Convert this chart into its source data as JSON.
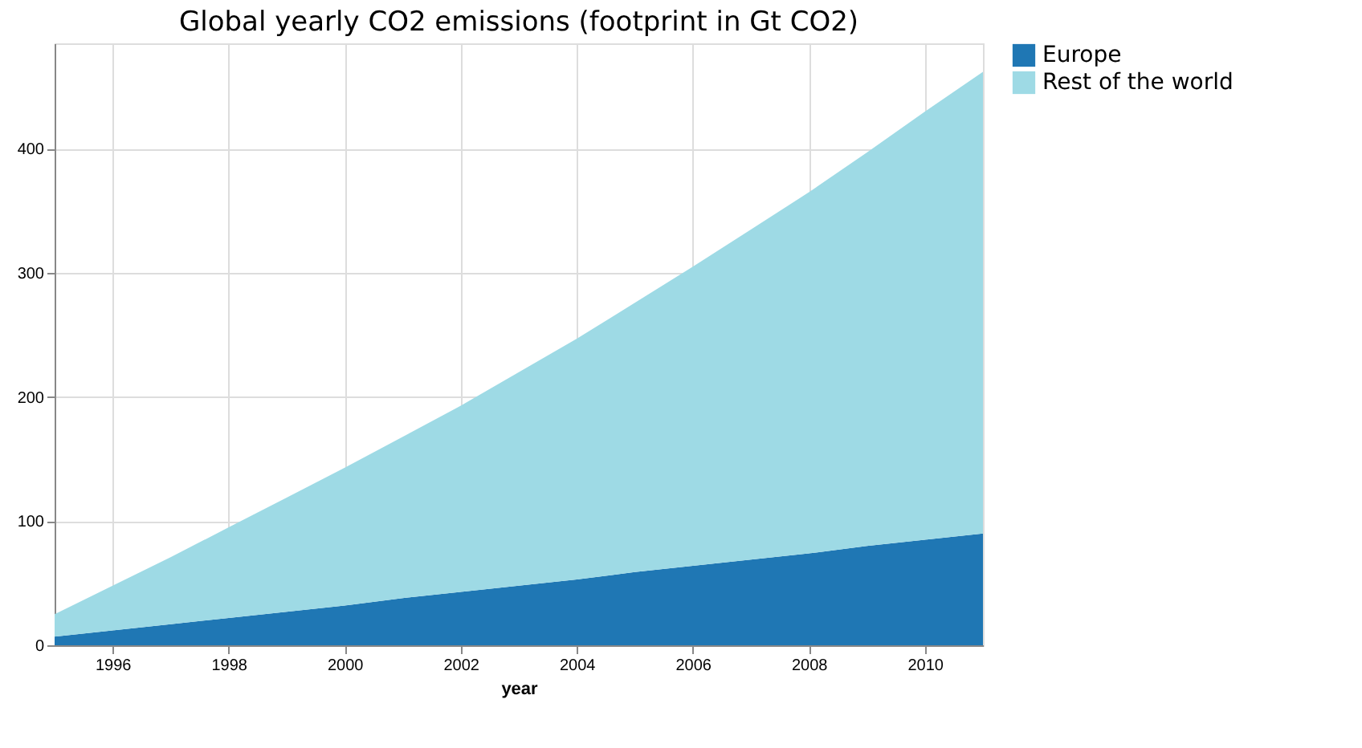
{
  "chart_data": {
    "type": "area",
    "title": "Global yearly CO2 emissions (footprint in Gt CO2)",
    "xlabel": "year",
    "x": [
      1995,
      1996,
      1997,
      1998,
      1999,
      2000,
      2001,
      2002,
      2003,
      2004,
      2005,
      2006,
      2007,
      2008,
      2009,
      2010,
      2011
    ],
    "stacked": true,
    "series": [
      {
        "name": "Europe",
        "color": "#1f77b4",
        "values": [
          7,
          12,
          17,
          22,
          27,
          32,
          38,
          43,
          48,
          53,
          59,
          64,
          69,
          74,
          80,
          85,
          90
        ]
      },
      {
        "name": "Rest of the world",
        "color": "#9edae5",
        "values": [
          18,
          36,
          54,
          73,
          92,
          111,
          130,
          150,
          172,
          194,
          217,
          241,
          266,
          291,
          317,
          345,
          372
        ]
      }
    ],
    "xlim": [
      1995,
      2011
    ],
    "xticks": [
      1996,
      1998,
      2000,
      2002,
      2004,
      2006,
      2008,
      2010
    ],
    "ylim": [
      0,
      485
    ],
    "yticks": [
      0,
      100,
      200,
      300,
      400
    ],
    "grid": true,
    "legend": "right"
  }
}
